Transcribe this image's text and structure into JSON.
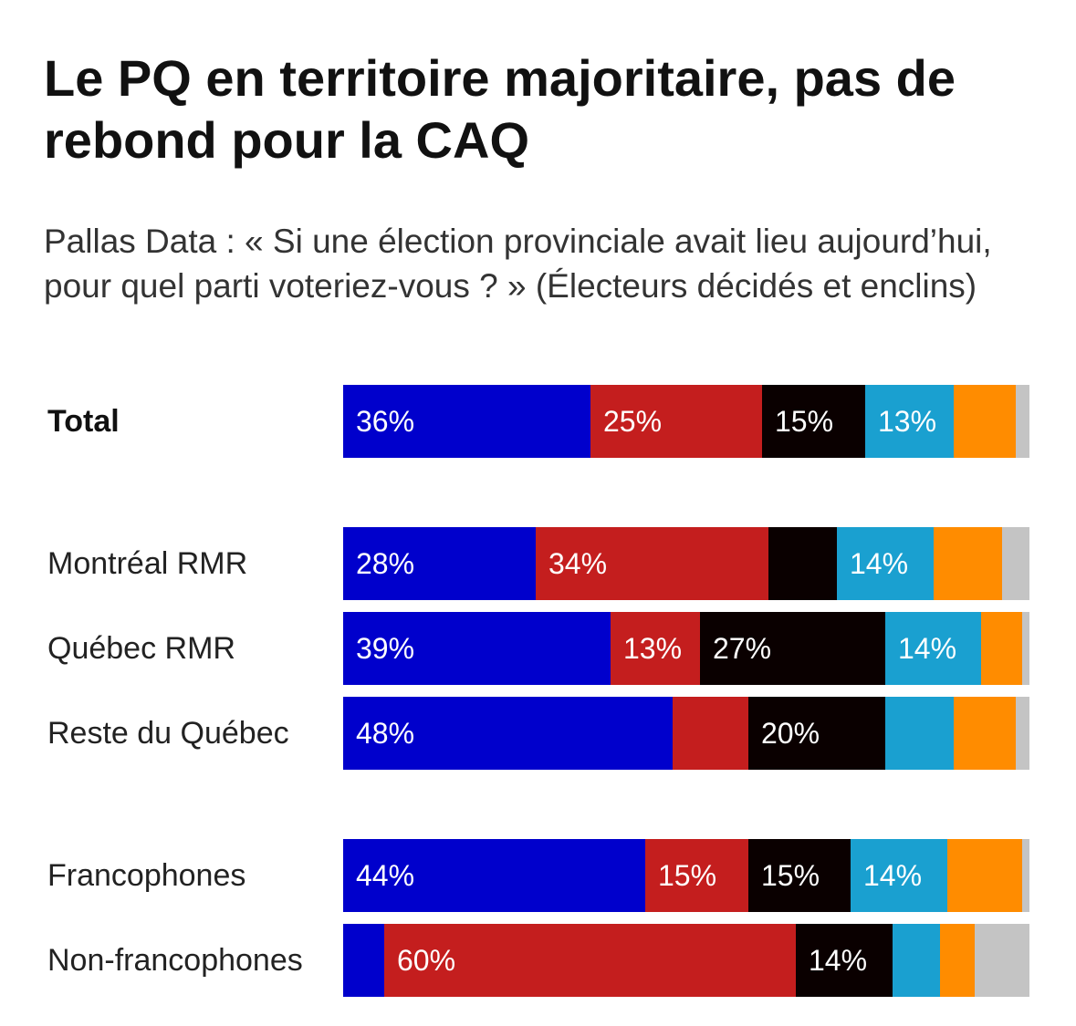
{
  "title": "Le PQ en territoire majoritaire, pas de rebond pour la CAQ",
  "subtitle": "Pallas Data : « Si une élection provinciale avait lieu aujourd’hui, pour quel parti voteriez-vous ? » (Électeurs décidés et enclins)",
  "chart_data": {
    "type": "bar",
    "orientation": "horizontal",
    "stacked": true,
    "colors": [
      "#0000cc",
      "#c41e1e",
      "#0a0000",
      "#1aa0d0",
      "#ff8c00",
      "#c4c4c4"
    ],
    "rows": [
      {
        "label": "Total",
        "bold": true,
        "values": [
          36,
          25,
          15,
          13,
          9,
          2
        ],
        "labels": [
          "36%",
          "25%",
          "15%",
          "13%",
          "",
          ""
        ]
      },
      {
        "label": "Montréal RMR",
        "bold": false,
        "values": [
          28,
          34,
          10,
          14,
          10,
          4
        ],
        "labels": [
          "28%",
          "34%",
          "",
          "14%",
          "",
          ""
        ]
      },
      {
        "label": "Québec RMR",
        "bold": false,
        "values": [
          39,
          13,
          27,
          14,
          6,
          1
        ],
        "labels": [
          "39%",
          "13%",
          "27%",
          "14%",
          "",
          ""
        ]
      },
      {
        "label": "Reste du Québec",
        "bold": false,
        "values": [
          48,
          11,
          20,
          10,
          9,
          2
        ],
        "labels": [
          "48%",
          "",
          "20%",
          "",
          "",
          ""
        ]
      },
      {
        "label": "Francophones",
        "bold": false,
        "values": [
          44,
          15,
          15,
          14,
          11,
          1
        ],
        "labels": [
          "44%",
          "15%",
          "15%",
          "14%",
          "",
          ""
        ]
      },
      {
        "label": "Non-francophones",
        "bold": false,
        "values": [
          6,
          60,
          14,
          7,
          5,
          8
        ],
        "labels": [
          "",
          "60%",
          "14%",
          "",
          "",
          ""
        ]
      }
    ]
  }
}
